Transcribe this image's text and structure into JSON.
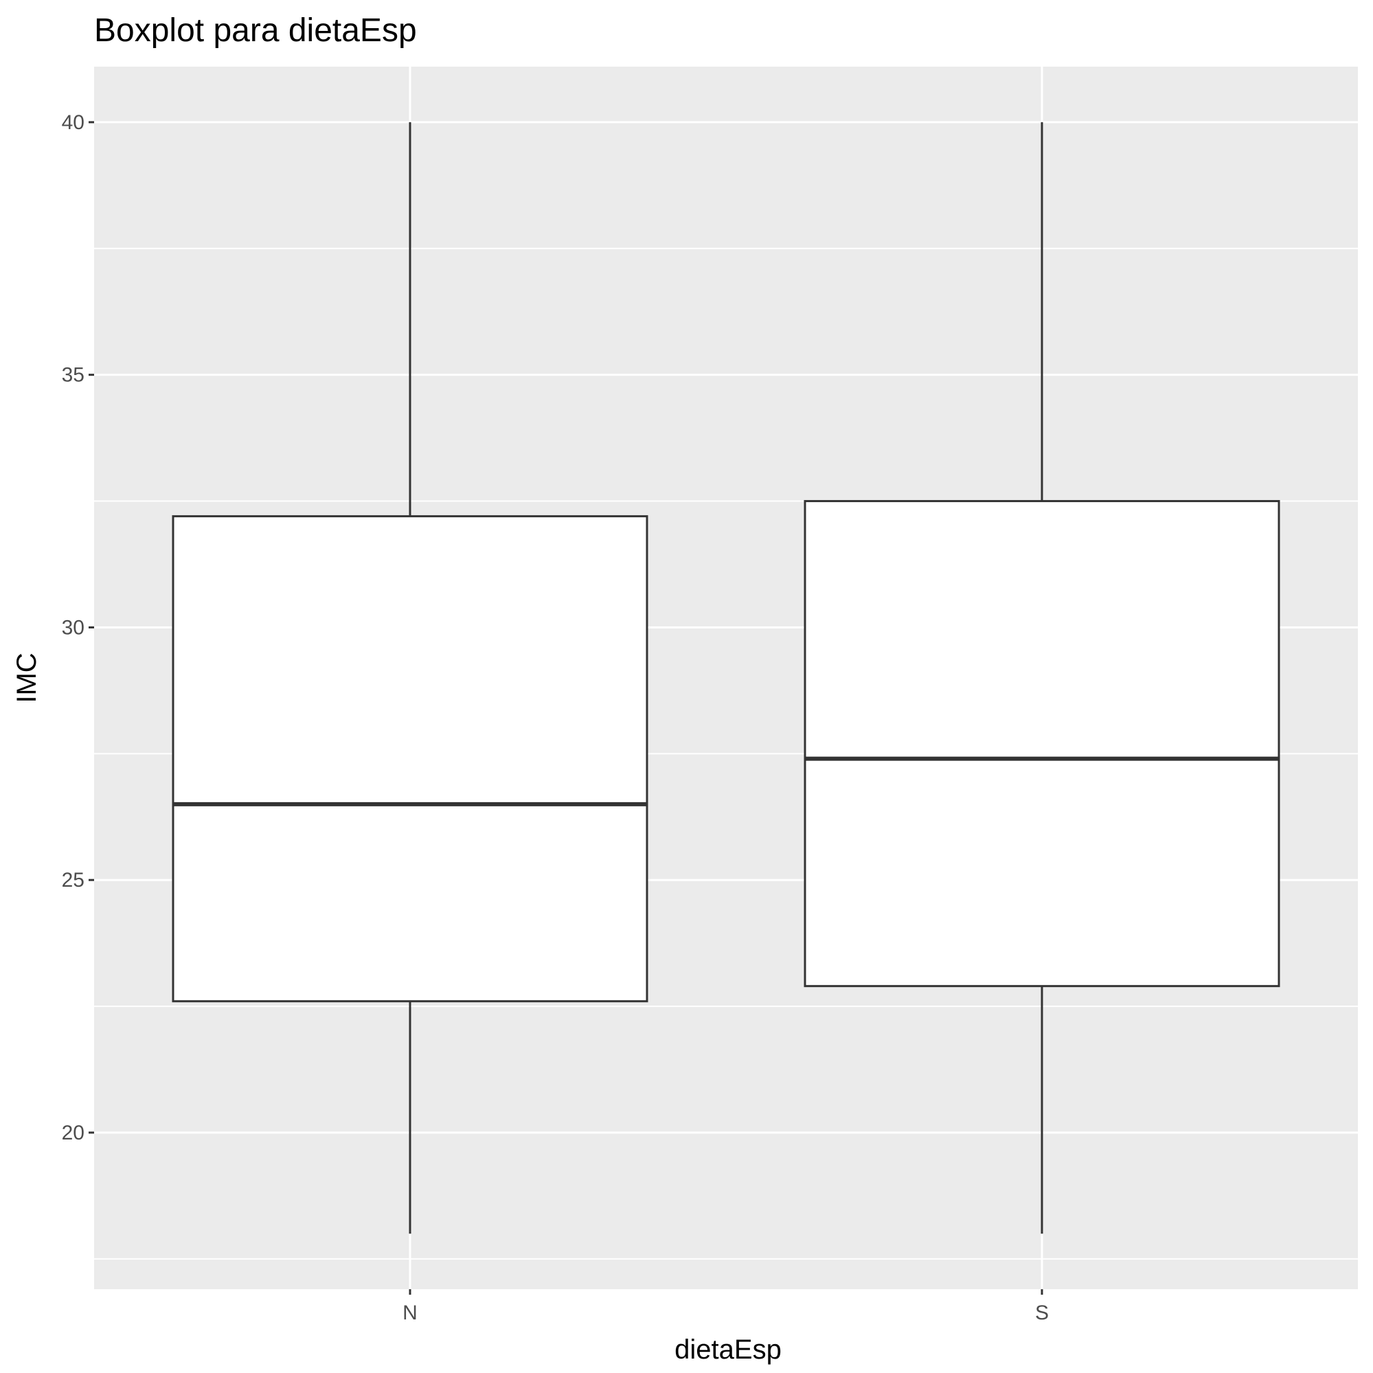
{
  "chart_data": {
    "type": "boxplot",
    "title": "Boxplot para dietaEsp",
    "xlabel": "dietaEsp",
    "ylabel": "IMC",
    "categories": [
      "N",
      "S"
    ],
    "boxes": [
      {
        "category": "N",
        "whisker_low": 18.0,
        "q1": 22.6,
        "median": 26.5,
        "q3": 32.2,
        "whisker_high": 40.0
      },
      {
        "category": "S",
        "whisker_low": 18.0,
        "q1": 22.9,
        "median": 27.4,
        "q3": 32.5,
        "whisker_high": 40.0
      }
    ],
    "yticks": [
      20,
      25,
      30,
      35,
      40
    ],
    "ylim": [
      16.9,
      41.1
    ],
    "grid": true,
    "colors": {
      "panel_background": "#ebebeb",
      "grid": "#ffffff",
      "box_fill": "#ffffff",
      "box_stroke": "#333333",
      "tick_label": "#4d4d4d"
    }
  }
}
